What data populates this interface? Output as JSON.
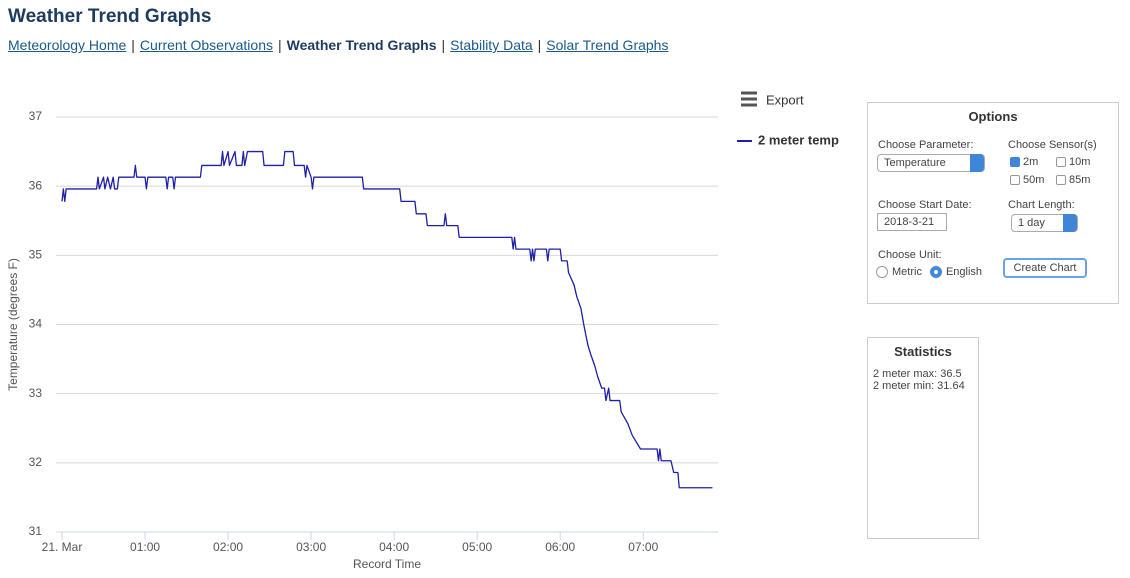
{
  "header": {
    "title": "Weather Trend Graphs"
  },
  "nav": {
    "separator": "|",
    "links": [
      "Meteorology Home",
      "Current Observations",
      "Weather Trend Graphs",
      "Stability Data",
      "Solar Trend Graphs"
    ],
    "current": 2
  },
  "export": "Export",
  "chart_data": {
    "type": "line",
    "x_label": "Record Time",
    "y_label": "Temperature (degrees F)",
    "x": [
      "00:00",
      "00:01",
      "00:02",
      "00:03",
      "00:25",
      "00:26",
      "00:27",
      "00:30",
      "00:31",
      "00:33",
      "00:35",
      "00:37",
      "00:38",
      "00:40",
      "00:41",
      "00:52",
      "00:53",
      "00:54",
      "01:00",
      "01:01",
      "01:02",
      "01:15",
      "01:16",
      "01:17",
      "01:20",
      "01:21",
      "01:22",
      "01:40",
      "01:41",
      "01:55",
      "01:56",
      "01:57",
      "02:00",
      "02:01",
      "02:05",
      "02:06",
      "02:10",
      "02:11",
      "02:12",
      "02:14",
      "02:25",
      "02:26",
      "02:40",
      "02:41",
      "02:47",
      "02:48",
      "02:55",
      "02:56",
      "02:57",
      "03:00",
      "03:01",
      "03:02",
      "03:37",
      "03:38",
      "04:04",
      "04:05",
      "04:15",
      "04:16",
      "04:23",
      "04:24",
      "04:36",
      "04:37",
      "04:38",
      "04:46",
      "04:47",
      "05:25",
      "05:26",
      "05:27",
      "05:28",
      "05:38",
      "05:39",
      "05:40",
      "05:41",
      "05:42",
      "05:50",
      "05:51",
      "05:52",
      "06:00",
      "06:01",
      "06:05",
      "06:06",
      "06:10",
      "06:12",
      "06:15",
      "06:17",
      "06:20",
      "06:22",
      "06:25",
      "06:27",
      "06:30",
      "06:32",
      "06:33",
      "06:35",
      "06:36",
      "06:43",
      "06:44",
      "06:49",
      "06:52",
      "06:58",
      "07:10",
      "07:11",
      "07:12",
      "07:13",
      "07:20",
      "07:22",
      "07:25",
      "07:26",
      "07:50"
    ],
    "series": [
      {
        "name": "2 meter temp",
        "color": "#1f1fa8",
        "values": [
          35.78,
          35.96,
          35.78,
          35.96,
          35.96,
          36.13,
          35.96,
          36.13,
          35.96,
          36.13,
          35.96,
          36.13,
          35.96,
          35.96,
          36.13,
          36.13,
          36.3,
          36.13,
          36.13,
          35.96,
          36.13,
          36.13,
          35.96,
          36.13,
          36.13,
          35.96,
          36.13,
          36.13,
          36.3,
          36.3,
          36.5,
          36.3,
          36.5,
          36.3,
          36.5,
          36.3,
          36.3,
          36.5,
          36.3,
          36.5,
          36.5,
          36.3,
          36.3,
          36.5,
          36.5,
          36.3,
          36.3,
          36.13,
          36.3,
          36.13,
          35.96,
          36.13,
          36.13,
          35.96,
          35.96,
          35.78,
          35.78,
          35.6,
          35.6,
          35.43,
          35.43,
          35.6,
          35.43,
          35.43,
          35.26,
          35.26,
          35.09,
          35.26,
          35.09,
          35.09,
          34.92,
          35.09,
          34.92,
          35.09,
          35.09,
          34.92,
          35.09,
          35.09,
          34.92,
          34.92,
          34.75,
          34.57,
          34.4,
          34.23,
          34.0,
          33.7,
          33.57,
          33.4,
          33.25,
          33.08,
          33.08,
          32.9,
          33.08,
          32.9,
          32.9,
          32.74,
          32.56,
          32.4,
          32.2,
          32.2,
          32.03,
          32.2,
          32.03,
          32.03,
          31.86,
          31.86,
          31.64,
          31.64
        ]
      }
    ],
    "xlim": [
      "00:00",
      "07:54"
    ],
    "xticks": [
      {
        "value": "00:00",
        "label": "21. Mar"
      },
      "01:00",
      "02:00",
      "03:00",
      "04:00",
      "05:00",
      "06:00",
      "07:00"
    ],
    "ylim": [
      31,
      37
    ],
    "yticks": [
      31,
      32,
      33,
      34,
      35,
      36,
      37
    ],
    "grid": true
  },
  "options": {
    "title": "Options",
    "parameter_label": "Choose Parameter:",
    "parameter_value": "Temperature",
    "sensor_label": "Choose Sensor(s)",
    "sensors": [
      {
        "label": "2m",
        "checked": true
      },
      {
        "label": "10m",
        "checked": false
      },
      {
        "label": "50m",
        "checked": false
      },
      {
        "label": "85m",
        "checked": false
      }
    ],
    "start_date_label": "Choose Start Date:",
    "start_date": "2018-3-21",
    "length_label": "Chart Length:",
    "length_value": "1 day",
    "unit_label": "Choose Unit:",
    "units": [
      {
        "label": "Metric",
        "checked": false
      },
      {
        "label": "English",
        "checked": true
      }
    ],
    "button": "Create Chart"
  },
  "statistics": {
    "title": "Statistics",
    "lines": [
      "2 meter max: 36.5",
      "2 meter min: 31.64"
    ]
  }
}
